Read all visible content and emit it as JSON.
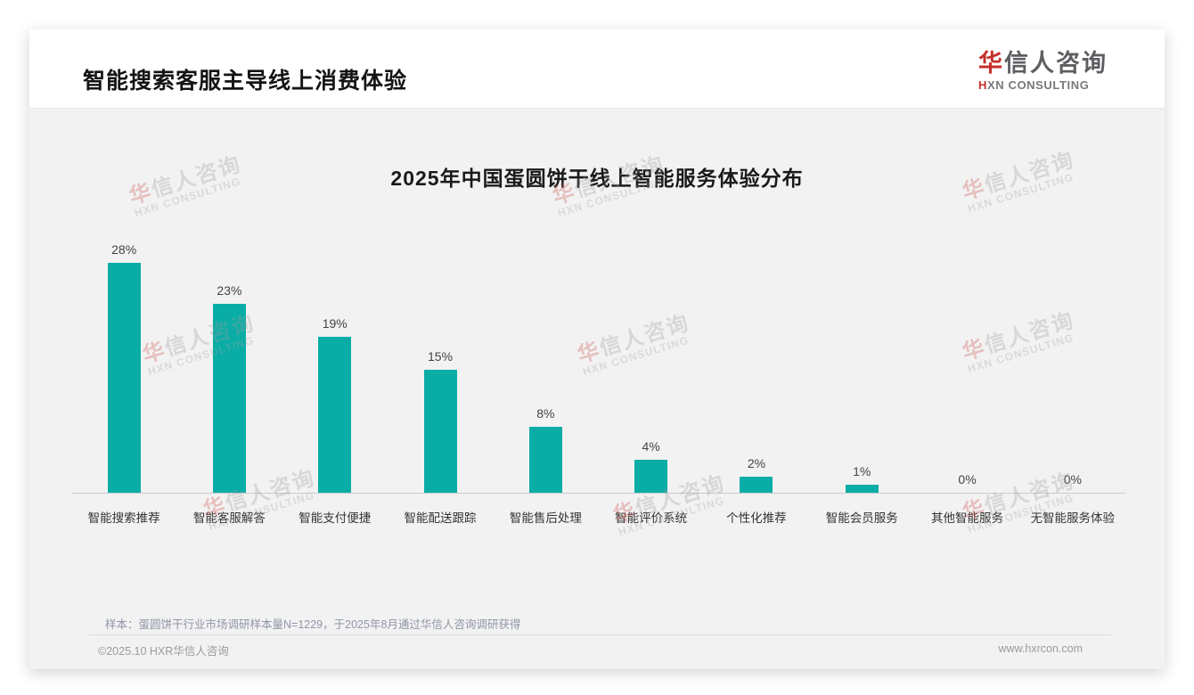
{
  "page": {
    "title": "智能搜索客服主导线上消费体验",
    "logo": {
      "zh_first": "华",
      "zh_rest": "信人咨询",
      "en_first": "H",
      "en_rest": "XN CONSULTING"
    },
    "watermark": {
      "line1_first": "华",
      "line1_rest": "信人咨询",
      "line2": "HXN CONSULTING"
    },
    "note": "样本：蛋圆饼干行业市场调研样本量N=1229，于2025年8月通过华信人咨询调研获得",
    "footer": {
      "copyright": "©2025.10 HXR华信人咨询",
      "website": "www.hxrcon.com"
    }
  },
  "chart_data": {
    "type": "bar",
    "title": "2025年中国蛋圆饼干线上智能服务体验分布",
    "categories": [
      "智能搜索推荐",
      "智能客服解答",
      "智能支付便捷",
      "智能配送跟踪",
      "智能售后处理",
      "智能评价系统",
      "个性化推荐",
      "智能会员服务",
      "其他智能服务",
      "无智能服务体验"
    ],
    "values": [
      28,
      23,
      19,
      15,
      8,
      4,
      2,
      1,
      0,
      0
    ],
    "value_labels": [
      "28%",
      "23%",
      "19%",
      "15%",
      "8%",
      "4%",
      "2%",
      "1%",
      "0%",
      "0%"
    ],
    "unit": "%",
    "ylim": [
      0,
      30
    ],
    "grid": false,
    "legend": false,
    "bar_color": "#0aada6",
    "axis_color": "#cccccc"
  },
  "colors": {
    "accent_red": "#c4302b",
    "bar_teal": "#0aada6",
    "card_bg": "#f2f2f3"
  }
}
